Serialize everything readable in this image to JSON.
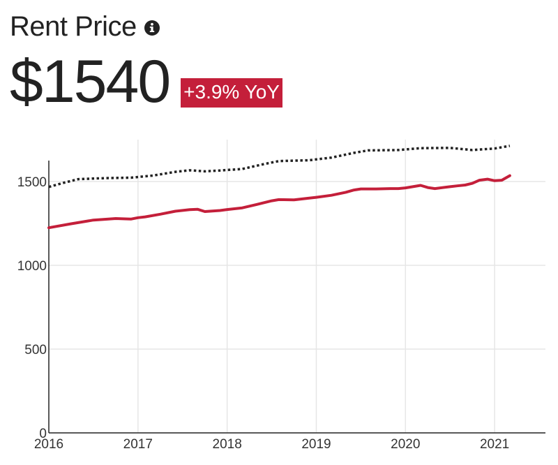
{
  "header": {
    "title": "Rent Price",
    "info_icon": "info-icon"
  },
  "summary": {
    "price": "$1540",
    "yoy_badge": "+3.9% YoY",
    "badge_color": "#c41f3a"
  },
  "chart_data": {
    "type": "line",
    "title": "",
    "xlabel": "",
    "ylabel": "",
    "x_ticks": [
      "2016",
      "2017",
      "2018",
      "2019",
      "2020",
      "2021"
    ],
    "y_ticks": [
      "0",
      "500",
      "1000",
      "1500"
    ],
    "xlim": [
      2016,
      2021.57
    ],
    "ylim": [
      0,
      1750
    ],
    "grid": true,
    "legend": "none",
    "series": [
      {
        "style": "solid",
        "color": "#c41f3a",
        "points": [
          [
            2016.0,
            1224
          ],
          [
            2016.25,
            1248
          ],
          [
            2016.5,
            1270
          ],
          [
            2016.75,
            1279
          ],
          [
            2016.92,
            1276
          ],
          [
            2017.0,
            1284
          ],
          [
            2017.08,
            1289
          ],
          [
            2017.25,
            1305
          ],
          [
            2017.42,
            1323
          ],
          [
            2017.58,
            1332
          ],
          [
            2017.67,
            1334
          ],
          [
            2017.75,
            1321
          ],
          [
            2017.92,
            1327
          ],
          [
            2018.0,
            1333
          ],
          [
            2018.17,
            1343
          ],
          [
            2018.33,
            1363
          ],
          [
            2018.5,
            1385
          ],
          [
            2018.58,
            1392
          ],
          [
            2018.75,
            1391
          ],
          [
            2018.92,
            1401
          ],
          [
            2019.0,
            1406
          ],
          [
            2019.17,
            1418
          ],
          [
            2019.33,
            1436
          ],
          [
            2019.42,
            1449
          ],
          [
            2019.5,
            1456
          ],
          [
            2019.67,
            1456
          ],
          [
            2019.83,
            1458
          ],
          [
            2019.92,
            1458
          ],
          [
            2020.0,
            1462
          ],
          [
            2020.17,
            1477
          ],
          [
            2020.25,
            1464
          ],
          [
            2020.33,
            1458
          ],
          [
            2020.5,
            1469
          ],
          [
            2020.58,
            1474
          ],
          [
            2020.67,
            1479
          ],
          [
            2020.75,
            1489
          ],
          [
            2020.83,
            1508
          ],
          [
            2020.92,
            1514
          ],
          [
            2021.0,
            1505
          ],
          [
            2021.08,
            1508
          ],
          [
            2021.17,
            1535
          ]
        ]
      },
      {
        "style": "dotted",
        "color": "#222222",
        "points": [
          [
            2016.0,
            1468
          ],
          [
            2016.17,
            1493
          ],
          [
            2016.33,
            1514
          ],
          [
            2016.5,
            1518
          ],
          [
            2016.67,
            1521
          ],
          [
            2016.92,
            1523
          ],
          [
            2017.17,
            1536
          ],
          [
            2017.42,
            1558
          ],
          [
            2017.58,
            1567
          ],
          [
            2017.75,
            1561
          ],
          [
            2017.92,
            1566
          ],
          [
            2018.17,
            1575
          ],
          [
            2018.42,
            1605
          ],
          [
            2018.58,
            1622
          ],
          [
            2018.92,
            1627
          ],
          [
            2019.17,
            1643
          ],
          [
            2019.42,
            1671
          ],
          [
            2019.58,
            1686
          ],
          [
            2019.92,
            1688
          ],
          [
            2020.17,
            1699
          ],
          [
            2020.5,
            1701
          ],
          [
            2020.75,
            1688
          ],
          [
            2021.0,
            1697
          ],
          [
            2021.17,
            1713
          ]
        ]
      }
    ]
  }
}
